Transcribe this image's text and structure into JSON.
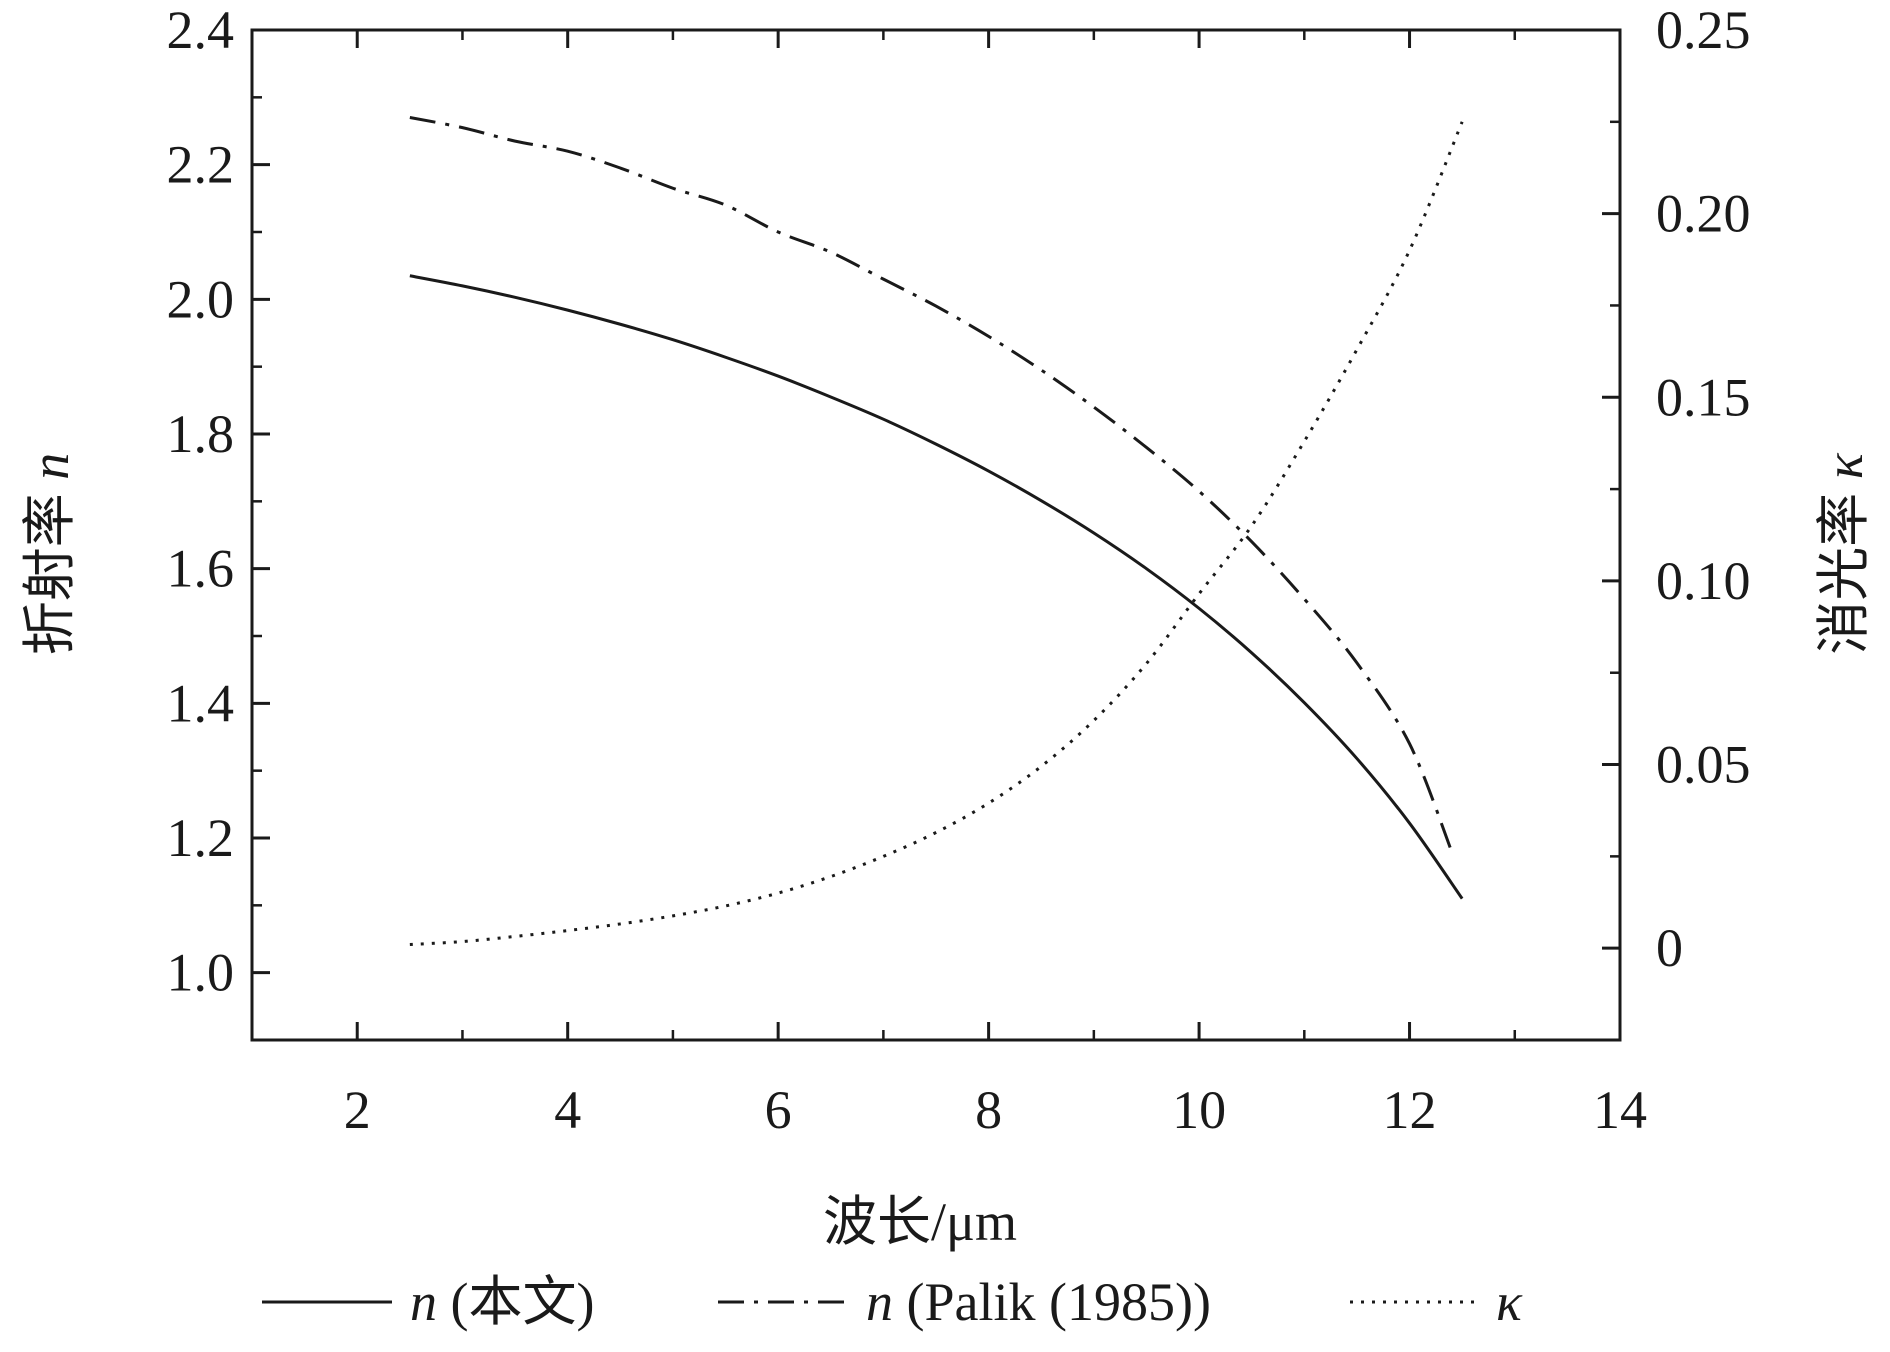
{
  "chart_data": {
    "type": "line",
    "x_label": "波长/μm",
    "y_label_left": {
      "text": "折射率 ",
      "var": "n"
    },
    "y_label_right": {
      "text": "消光率 ",
      "var": "κ"
    },
    "xlim": [
      1,
      14
    ],
    "ylim_left": [
      0.9,
      2.4
    ],
    "ylim_right": [
      -0.025,
      0.25
    ],
    "x_ticks": [
      2,
      4,
      6,
      8,
      10,
      12,
      14
    ],
    "x_tick_labels": [
      "2",
      "4",
      "6",
      "8",
      "10",
      "12",
      "14"
    ],
    "y_left_ticks": [
      1.0,
      1.2,
      1.4,
      1.6,
      1.8,
      2.0,
      2.2,
      2.4
    ],
    "y_left_tick_labels": [
      "1.0",
      "1.2",
      "1.4",
      "1.6",
      "1.8",
      "2.0",
      "2.2",
      "2.4"
    ],
    "y_right_ticks": [
      0,
      0.05,
      0.1,
      0.15,
      0.2,
      0.25
    ],
    "y_right_tick_labels": [
      "0",
      "0.05",
      "0.10",
      "0.15",
      "0.20",
      "0.25"
    ],
    "grid": false,
    "legend_position": "bottom",
    "colors": {
      "line": "#1a1a1a",
      "background": "#ffffff"
    },
    "series": [
      {
        "name": "n (本文)",
        "legend_var": "n",
        "legend_rest": " (本文)",
        "axis": "left",
        "style": "solid",
        "x": [
          2.5,
          3.0,
          3.5,
          4.0,
          4.5,
          5.0,
          5.5,
          6.0,
          6.5,
          7.0,
          7.5,
          8.0,
          8.5,
          9.0,
          9.5,
          10.0,
          10.5,
          11.0,
          11.5,
          12.0,
          12.5
        ],
        "y": [
          2.035,
          2.02,
          2.003,
          1.984,
          1.963,
          1.94,
          1.914,
          1.886,
          1.855,
          1.822,
          1.785,
          1.745,
          1.701,
          1.653,
          1.6,
          1.541,
          1.475,
          1.401,
          1.318,
          1.222,
          1.11
        ]
      },
      {
        "name": "n (Palik (1985))",
        "legend_var": "n",
        "legend_rest": " (Palik (1985))",
        "axis": "left",
        "style": "dashdot",
        "x": [
          2.5,
          3.0,
          3.5,
          4.0,
          4.5,
          5.0,
          5.5,
          6.0,
          6.5,
          7.0,
          7.5,
          8.0,
          8.5,
          9.0,
          9.5,
          10.0,
          10.5,
          11.0,
          11.5,
          12.0,
          12.4
        ],
        "y": [
          2.27,
          2.255,
          2.235,
          2.22,
          2.195,
          2.165,
          2.14,
          2.1,
          2.07,
          2.03,
          1.99,
          1.945,
          1.895,
          1.84,
          1.78,
          1.715,
          1.64,
          1.555,
          1.46,
          1.34,
          1.18
        ]
      },
      {
        "name": "κ",
        "legend_var": "κ",
        "legend_rest": "",
        "axis": "right",
        "style": "dotted",
        "x": [
          2.5,
          3.0,
          3.5,
          4.0,
          4.5,
          5.0,
          5.5,
          6.0,
          6.5,
          7.0,
          7.5,
          8.0,
          8.5,
          9.0,
          9.5,
          10.0,
          10.5,
          11.0,
          11.5,
          12.0,
          12.5
        ],
        "y": [
          0.001,
          0.0018,
          0.0032,
          0.0048,
          0.0066,
          0.0088,
          0.0115,
          0.015,
          0.0195,
          0.025,
          0.0315,
          0.0395,
          0.0495,
          0.062,
          0.0775,
          0.0965,
          0.115,
          0.138,
          0.163,
          0.19,
          0.225
        ]
      }
    ]
  }
}
